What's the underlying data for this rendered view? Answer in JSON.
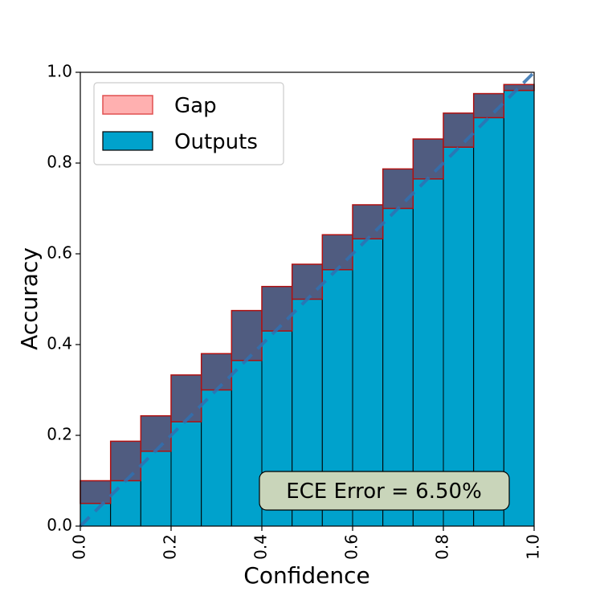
{
  "chart_data": {
    "type": "bar",
    "xlabel": "Confidence",
    "ylabel": "Accuracy",
    "xlim": [
      0.0,
      1.0
    ],
    "ylim": [
      0.0,
      1.0
    ],
    "xticks": [
      "0.0",
      "0.2",
      "0.4",
      "0.6",
      "0.8",
      "1.0"
    ],
    "yticks": [
      "0.0",
      "0.2",
      "0.4",
      "0.6",
      "0.8",
      "1.0"
    ],
    "grid": false,
    "legend_position": "top-left",
    "bin_edges": [
      0.0,
      0.0667,
      0.1333,
      0.2,
      0.2667,
      0.3333,
      0.4,
      0.4667,
      0.5333,
      0.6,
      0.6667,
      0.7333,
      0.8,
      0.8667,
      0.9333,
      1.0
    ],
    "series": [
      {
        "name": "Outputs",
        "values": [
          0.05,
          0.1,
          0.165,
          0.23,
          0.3,
          0.365,
          0.43,
          0.5,
          0.565,
          0.633,
          0.7,
          0.765,
          0.835,
          0.9,
          0.96
        ]
      },
      {
        "name": "Gap",
        "values": [
          0.1,
          0.187,
          0.243,
          0.333,
          0.38,
          0.475,
          0.528,
          0.577,
          0.642,
          0.708,
          0.787,
          0.853,
          0.91,
          0.953,
          0.973
        ]
      }
    ],
    "reference_line": {
      "from": [
        0,
        0
      ],
      "to": [
        1,
        1
      ],
      "style": "dashed"
    },
    "annotation": "ECE Error = 6.50%",
    "colors": {
      "outputs_fill": "#00a2cc",
      "outputs_edge": "#000000",
      "gap_fill": "#ff7b7b",
      "gap_edge": "#b01010",
      "overlay": "#505c80",
      "diagonal": "#3070b0",
      "annotation_bg": "#c9d5ba"
    }
  }
}
